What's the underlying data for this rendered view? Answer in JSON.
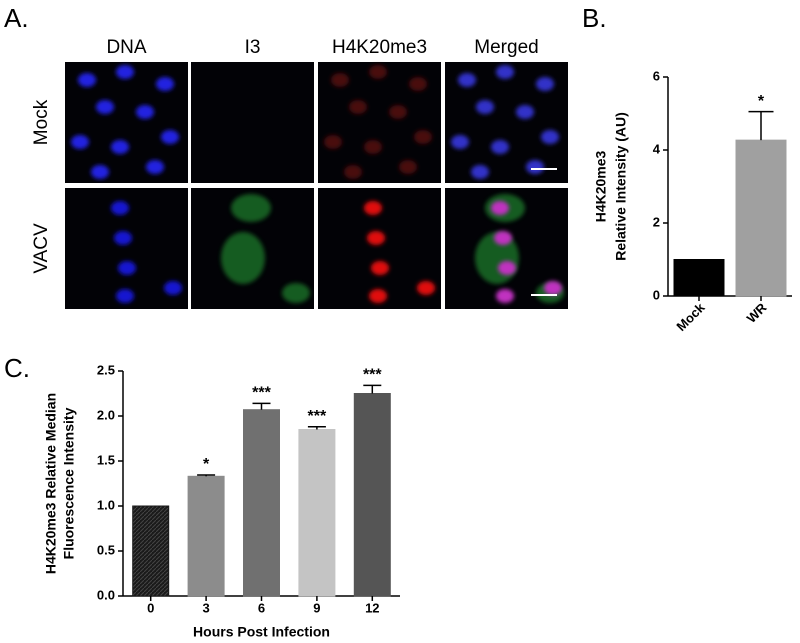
{
  "panels": [
    "A.",
    "B.",
    "C."
  ],
  "micrographs": {
    "columns": [
      "DNA",
      "I3",
      "H4K20me3",
      "Merged"
    ],
    "rows": [
      "Mock",
      "VACV"
    ]
  },
  "chart_data": [
    {
      "type": "bar",
      "ylabel": [
        "H4K20me3",
        "Relative Intensity (AU)"
      ],
      "categories": [
        "Mock",
        "WR"
      ],
      "values": [
        1,
        4.27
      ],
      "errors": [
        0,
        0.78
      ],
      "colors": [
        "#000000",
        "#a0a0a0"
      ],
      "value_annotations": [
        null,
        "*"
      ],
      "ylim": [
        0,
        6
      ],
      "yticks": [
        0,
        2,
        4,
        6
      ]
    },
    {
      "type": "bar",
      "xlabel": "Hours Post Infection",
      "ylabel": [
        "H4K20me3 Relative Median",
        "Fluorescence Intensity"
      ],
      "categories": [
        "0",
        "3",
        "6",
        "9",
        "12"
      ],
      "values": [
        1.0,
        1.33,
        2.07,
        1.85,
        2.25
      ],
      "errors": [
        0,
        0.015,
        0.07,
        0.03,
        0.09
      ],
      "colors": [
        "#1a1a1a",
        "#8c8c8c",
        "#707070",
        "#c4c4c4",
        "#555555"
      ],
      "value_annotations": [
        null,
        "*",
        "***",
        "***",
        "***"
      ],
      "ylim": [
        0,
        2.5
      ],
      "yticks": [
        {
          "value": 0,
          "label": "0.0"
        },
        {
          "value": 0.5,
          "label": "0.5"
        },
        {
          "value": 1,
          "label": "1.0"
        },
        {
          "value": 1.5,
          "label": "1.5"
        },
        {
          "value": 2,
          "label": "2.0"
        },
        {
          "value": 2.5,
          "label": "2.5"
        }
      ]
    }
  ]
}
